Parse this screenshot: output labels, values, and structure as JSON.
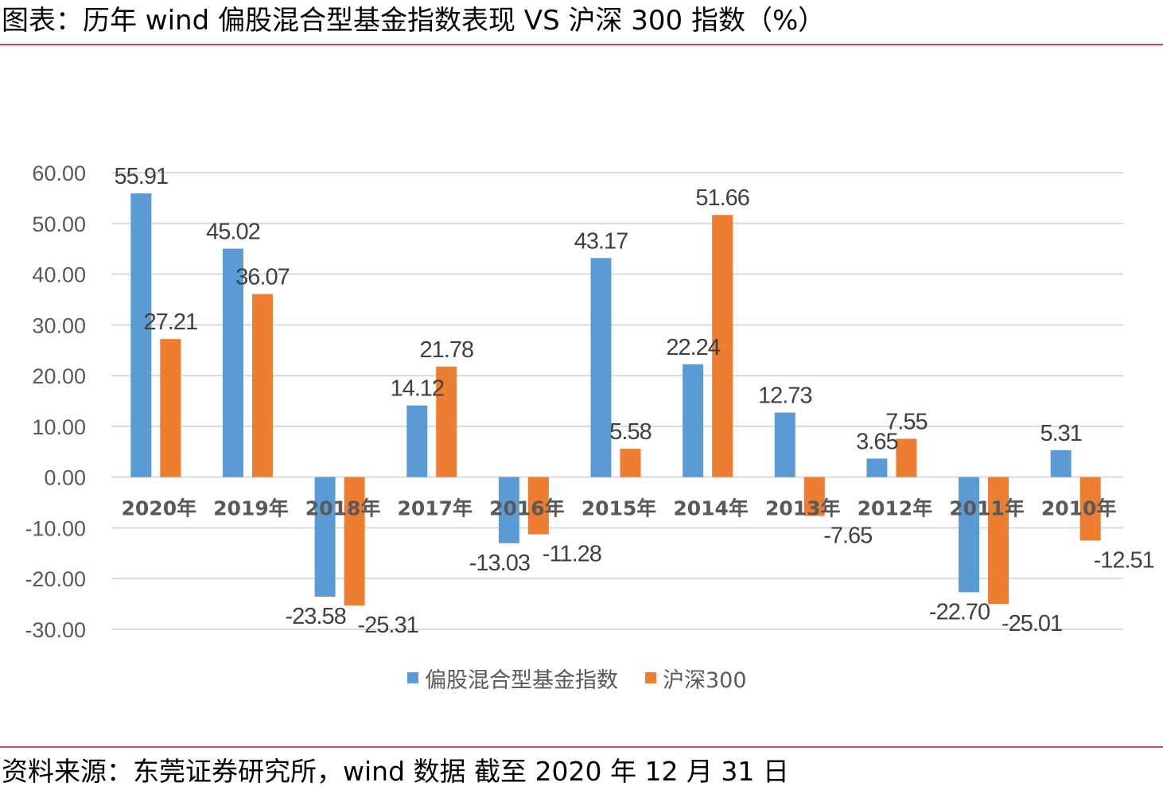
{
  "header": {
    "title": "图表：历年 wind 偏股混合型基金指数表现 VS 沪深 300 指数（%）"
  },
  "footer": {
    "source": "资料来源：东莞证券研究所，wind 数据    截至 2020 年 12 月 31 日"
  },
  "colors": {
    "accent_rule": "#c0504d",
    "series_fund": "#5b9bd5",
    "series_hs300": "#ed7d31",
    "grid": "#d9d9d9"
  },
  "chart_data": {
    "type": "bar",
    "title": "",
    "xlabel": "",
    "ylabel": "",
    "ylim": [
      -30,
      60
    ],
    "yticks": [
      "60.00",
      "50.00",
      "40.00",
      "30.00",
      "20.00",
      "10.00",
      "0.00",
      "-10.00",
      "-20.00",
      "-30.00"
    ],
    "grid": true,
    "legend_position": "bottom",
    "categories": [
      "2020年",
      "2019年",
      "2018年",
      "2017年",
      "2016年",
      "2015年",
      "2014年",
      "2013年",
      "2012年",
      "2011年",
      "2010年"
    ],
    "series": [
      {
        "name": "偏股混合型基金指数",
        "color": "#5b9bd5",
        "values": [
          55.91,
          45.02,
          -23.58,
          14.12,
          -13.03,
          43.17,
          22.24,
          12.73,
          3.65,
          -22.7,
          5.31
        ],
        "labels": [
          "55.91",
          "45.02",
          "-23.58",
          "14.12",
          "-13.03",
          "43.17",
          "22.24",
          "12.73",
          "3.65",
          "-22.70",
          "5.31"
        ]
      },
      {
        "name": "沪深300",
        "color": "#ed7d31",
        "values": [
          27.21,
          36.07,
          -25.31,
          21.78,
          -11.28,
          5.58,
          51.66,
          -7.65,
          7.55,
          -25.01,
          -12.51
        ],
        "labels": [
          "27.21",
          "36.07",
          "-25.31",
          "21.78",
          "-11.28",
          "5.58",
          "51.66",
          "-7.65",
          "7.55",
          "-25.01",
          "-12.51"
        ]
      }
    ]
  }
}
